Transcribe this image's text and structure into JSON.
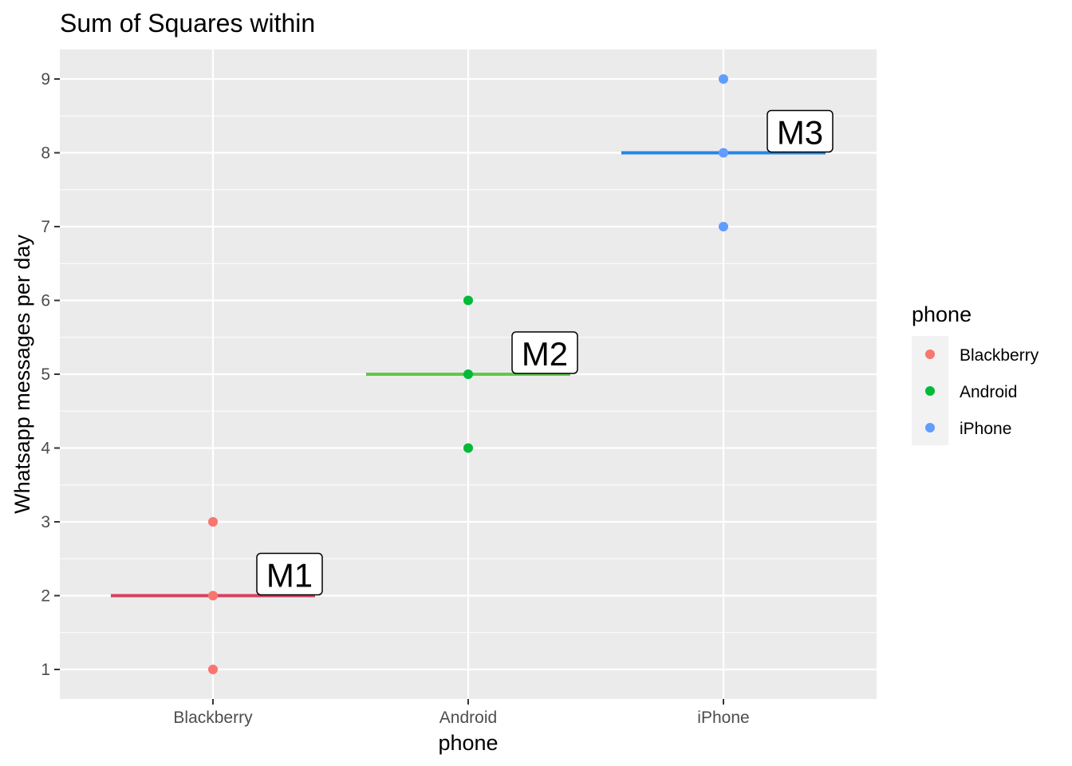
{
  "chart_data": {
    "type": "scatter",
    "title": "Sum of Squares within",
    "xlabel": "phone",
    "ylabel": "Whatsapp messages per day",
    "categories": [
      "Blackberry",
      "Android",
      "iPhone"
    ],
    "ylim": [
      0.6,
      9.4
    ],
    "yticks": [
      1,
      2,
      3,
      4,
      5,
      6,
      7,
      8,
      9
    ],
    "grid": true,
    "legend": {
      "title": "phone",
      "position": "right"
    },
    "series": [
      {
        "name": "Blackberry",
        "color": "#F8766D",
        "values": [
          1,
          2,
          3
        ]
      },
      {
        "name": "Android",
        "color": "#00BA38",
        "values": [
          4,
          5,
          6
        ]
      },
      {
        "name": "iPhone",
        "color": "#619CFF",
        "values": [
          7,
          8,
          9
        ]
      }
    ],
    "mean_lines": [
      {
        "category": "Blackberry",
        "value": 2,
        "label": "M1",
        "color": "#D7405E"
      },
      {
        "category": "Android",
        "value": 5,
        "label": "M2",
        "color": "#5CCB46"
      },
      {
        "category": "iPhone",
        "value": 8,
        "label": "M3",
        "color": "#2585E8"
      }
    ]
  }
}
